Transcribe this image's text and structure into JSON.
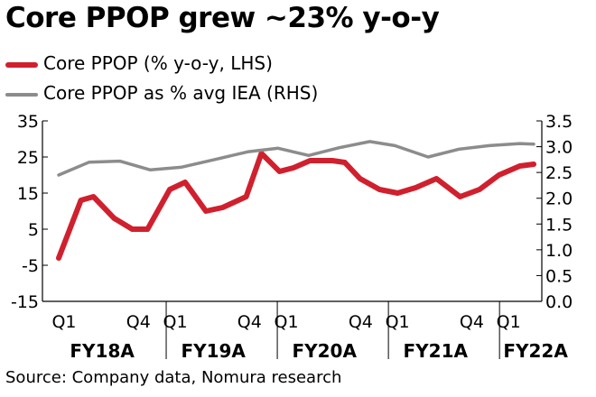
{
  "title": "Core PPOP grew ~23% y-o-y",
  "source": "Source: Company data, Nomura research",
  "colors": {
    "primary_series": "#d0202e",
    "secondary_series": "#8c8c8c",
    "axis": "#000000"
  },
  "chart_data": {
    "type": "line",
    "x": [
      1,
      2,
      3,
      4,
      5,
      6,
      7,
      8,
      9,
      10,
      11,
      12,
      13,
      14,
      15,
      16,
      17,
      18,
      19,
      20,
      21
    ],
    "quarter_labels": [
      "Q1",
      "Q4",
      "Q1",
      "Q4",
      "Q1",
      "Q4",
      "Q1",
      "Q4",
      "Q1"
    ],
    "quarter_label_x": [
      1,
      4,
      5,
      8,
      9,
      12,
      13,
      16,
      17
    ],
    "fiscal_years": [
      {
        "label": "FY18A",
        "start": 1,
        "end": 4
      },
      {
        "label": "FY19A",
        "start": 5,
        "end": 8
      },
      {
        "label": "FY20A",
        "start": 9,
        "end": 12
      },
      {
        "label": "FY21A",
        "start": 13,
        "end": 16
      },
      {
        "label": "FY22A",
        "start": 17,
        "end": 17
      }
    ],
    "y_left": {
      "ylim": [
        -15,
        35
      ],
      "ticks": [
        35,
        25,
        15,
        5,
        -5,
        -15
      ]
    },
    "y_right": {
      "ylim": [
        0,
        3.5
      ],
      "ticks": [
        "3.5",
        "3.0",
        "2.5",
        "2.0",
        "1.5",
        "1.0",
        "0.5",
        "0.0"
      ]
    },
    "series": [
      {
        "name": "Core PPOP (% y-o-y, LHS)",
        "axis": "left",
        "color": "#d0202e",
        "x": [
          1.0,
          1.8,
          2.25,
          3.0,
          3.65,
          4.2,
          5.0,
          5.55,
          6.3,
          6.9,
          7.75,
          8.3,
          8.95,
          9.45,
          10.05,
          10.85,
          11.3,
          11.85,
          12.55,
          13.2,
          13.85,
          14.6,
          15.45,
          16.15,
          16.85,
          17.6,
          18.1
        ],
        "values": [
          -3.0,
          13.0,
          14.0,
          8.0,
          5.0,
          5.0,
          16.0,
          18.0,
          10.0,
          11.0,
          14.0,
          26.0,
          21.0,
          22.0,
          24.0,
          24.0,
          23.5,
          19.0,
          16.0,
          15.0,
          16.5,
          19.0,
          14.0,
          16.0,
          20.0,
          22.5,
          23.0
        ]
      },
      {
        "name": "Core PPOP as % avg IEA (RHS)",
        "axis": "right",
        "color": "#8c8c8c",
        "x": [
          1.0,
          2.1,
          3.2,
          4.3,
          5.4,
          6.6,
          7.8,
          8.9,
          10.0,
          11.1,
          12.2,
          13.1,
          14.3,
          15.4,
          16.5,
          17.6,
          18.1
        ],
        "values": [
          2.45,
          2.7,
          2.72,
          2.55,
          2.6,
          2.75,
          2.9,
          2.97,
          2.83,
          2.98,
          3.1,
          3.02,
          2.8,
          2.95,
          3.02,
          3.06,
          3.05
        ]
      }
    ]
  }
}
